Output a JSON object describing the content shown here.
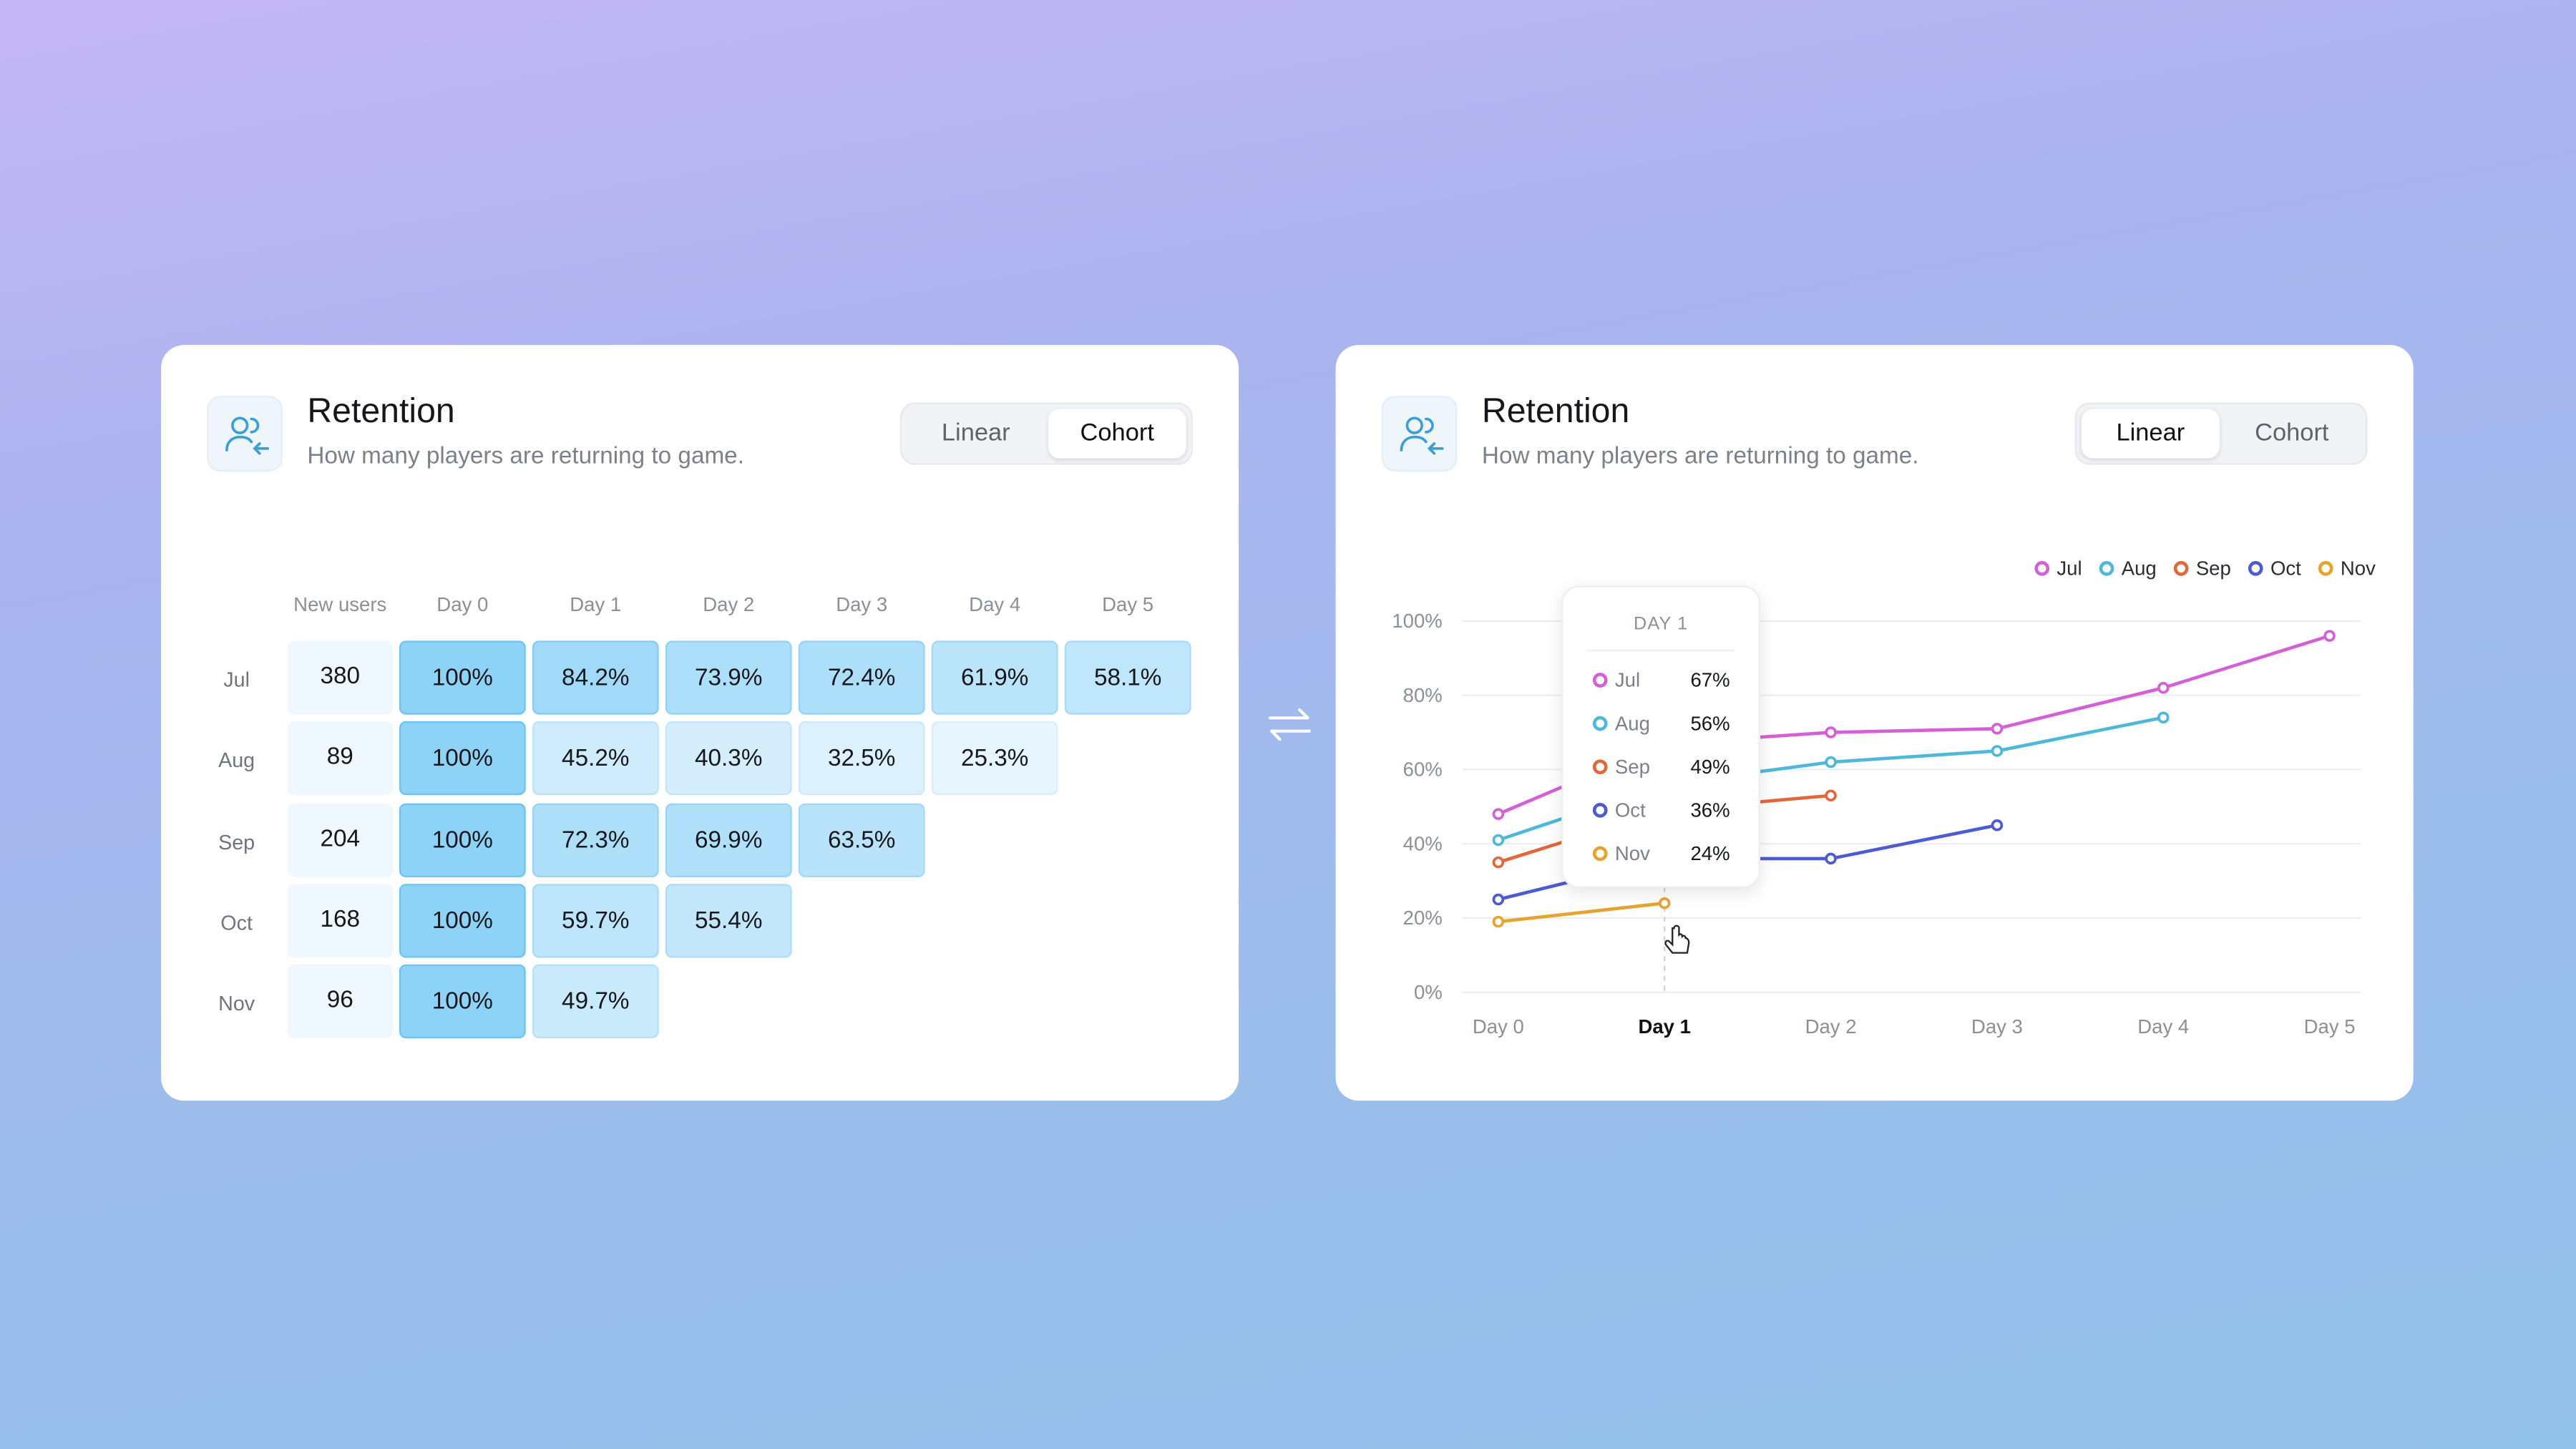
{
  "cohort_card": {
    "title": "Retention",
    "subtitle": "How many players are returning to game.",
    "toggle": [
      "Linear",
      "Cohort"
    ],
    "selected": "Cohort",
    "table": {
      "columns": [
        "New users",
        "Day 0",
        "Day 1",
        "Day 2",
        "Day 3",
        "Day 4",
        "Day 5"
      ],
      "row_labels": [
        "Jul",
        "Aug",
        "Sep",
        "Oct",
        "Nov"
      ],
      "rows": [
        [
          "380",
          "100%",
          "84.2%",
          "73.9%",
          "72.4%",
          "61.9%",
          "58.1%"
        ],
        [
          "89",
          "100%",
          "45.2%",
          "40.3%",
          "32.5%",
          "25.3%"
        ],
        [
          "204",
          "100%",
          "72.3%",
          "69.9%",
          "63.5%"
        ],
        [
          "168",
          "100%",
          "59.7%",
          "55.4%"
        ],
        [
          "96",
          "100%",
          "49.7%"
        ]
      ]
    }
  },
  "chart_card": {
    "title": "Retention",
    "subtitle": "How many players are returning to game.",
    "toggle": [
      "Linear",
      "Cohort"
    ],
    "selected": "Linear"
  },
  "chart_data": {
    "type": "line",
    "categories": [
      "Day 0",
      "Day 1",
      "Day 2",
      "Day 3",
      "Day 4",
      "Day 5"
    ],
    "series": [
      {
        "name": "Jul",
        "color": "#d45fd6",
        "values": [
          48,
          67,
          70,
          71,
          82,
          96
        ]
      },
      {
        "name": "Aug",
        "color": "#4fb8d8",
        "values": [
          41,
          56,
          62,
          65,
          74,
          null
        ]
      },
      {
        "name": "Sep",
        "color": "#e0683a",
        "values": [
          35,
          49,
          53,
          null,
          null,
          null
        ]
      },
      {
        "name": "Oct",
        "color": "#4d5bd0",
        "values": [
          25,
          36,
          36,
          45,
          null,
          null
        ]
      },
      {
        "name": "Nov",
        "color": "#e6a32e",
        "values": [
          19,
          24,
          null,
          null,
          null,
          null
        ]
      }
    ],
    "ylim": [
      0,
      100
    ],
    "yticks": [
      {
        "value": 0,
        "label": "0%"
      },
      {
        "value": 20,
        "label": "20%"
      },
      {
        "value": 40,
        "label": "40%"
      },
      {
        "value": 60,
        "label": "60%"
      },
      {
        "value": 80,
        "label": "80%"
      },
      {
        "value": 100,
        "label": "100%"
      }
    ],
    "grid": true,
    "legend": "top-right",
    "tooltip": {
      "title": "DAY 1",
      "labels": [
        "67%",
        "56%",
        "49%",
        "36%",
        "24%"
      ]
    }
  }
}
